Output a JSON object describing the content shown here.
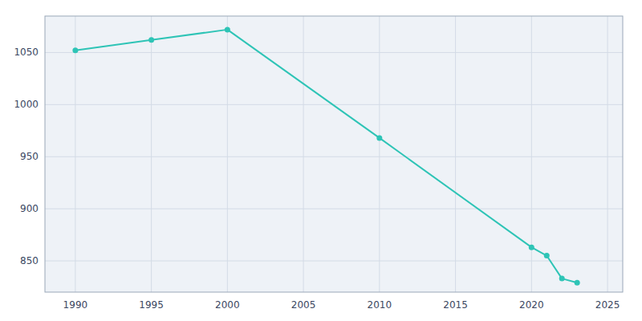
{
  "chart_data": {
    "type": "line",
    "x": [
      1990,
      1995,
      2000,
      2010,
      2020,
      2021,
      2022,
      2023
    ],
    "values": [
      1052,
      1062,
      1072,
      968,
      863,
      855,
      833,
      829
    ],
    "color": "#2ec4b6",
    "marker": "circle",
    "xlim": [
      1988,
      2026
    ],
    "ylim": [
      820,
      1085
    ],
    "xticks": [
      1990,
      1995,
      2000,
      2005,
      2010,
      2015,
      2020,
      2025
    ],
    "yticks": [
      850,
      900,
      950,
      1000,
      1050
    ],
    "grid": true
  }
}
